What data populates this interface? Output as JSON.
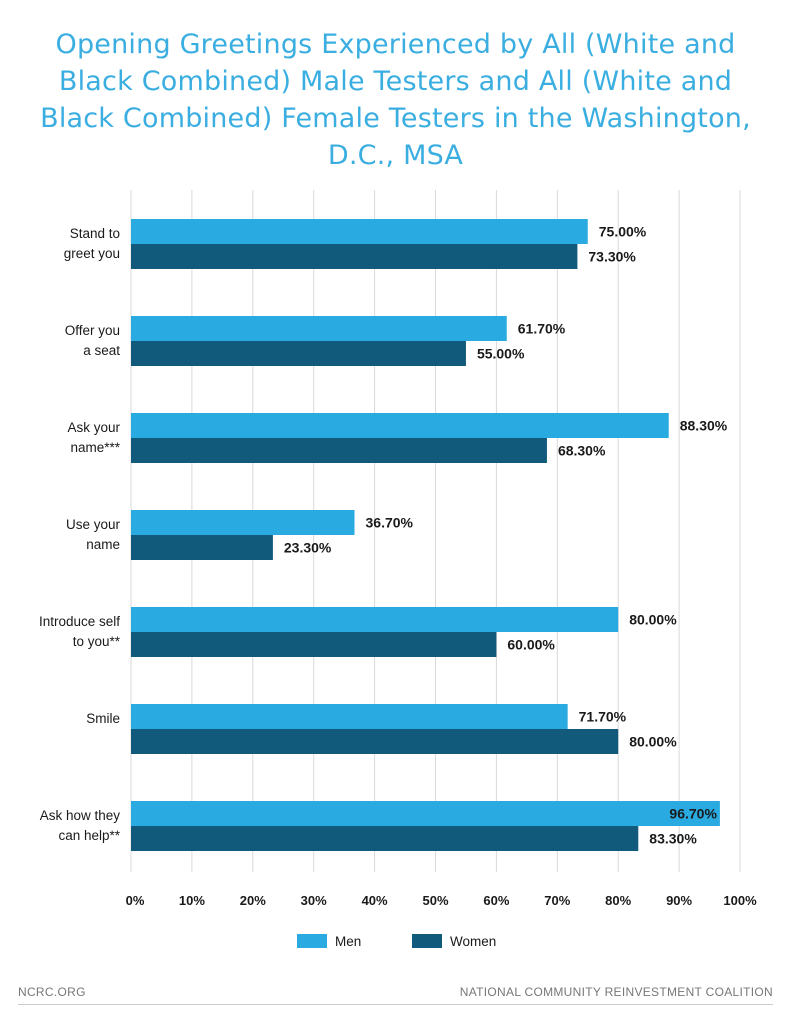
{
  "title": "Opening Greetings Experienced by All (White and Black Combined) Male Testers and All (White and Black Combined) Female Testers in the Washington, D.C., MSA",
  "colors": {
    "men": "#29abe2",
    "women": "#125a7c",
    "grid": "#d9d9d9",
    "title": "#3aaee0"
  },
  "chart_data": {
    "type": "bar",
    "orientation": "horizontal",
    "title": "Opening Greetings Experienced by All (White and Black Combined) Male Testers and All (White and Black Combined) Female Testers in the Washington, D.C., MSA",
    "categories": [
      "Stand to\ngreet you",
      "Offer you\na seat",
      "Ask your\nname***",
      "Use your\nname",
      "Introduce self\nto you**",
      "Smile",
      "Ask how they\ncan help**"
    ],
    "series": [
      {
        "name": "Men",
        "values": [
          75.0,
          61.7,
          88.3,
          36.7,
          80.0,
          71.7,
          96.7
        ],
        "labels": [
          "75.00%",
          "61.70%",
          "88.30%",
          "36.70%",
          "80.00%",
          "71.70%",
          "96.70%"
        ]
      },
      {
        "name": "Women",
        "values": [
          73.3,
          55.0,
          68.3,
          23.3,
          60.0,
          80.0,
          83.3
        ],
        "labels": [
          "73.30%",
          "55.00%",
          "68.30%",
          "23.30%",
          "60.00%",
          "80.00%",
          "83.30%"
        ]
      }
    ],
    "xlim": [
      0,
      100
    ],
    "xticks": [
      "0%",
      "10%",
      "20%",
      "30%",
      "40%",
      "50%",
      "60%",
      "70%",
      "80%",
      "90%",
      "100%"
    ],
    "grid": true,
    "legend": "bottom"
  },
  "footer": {
    "left": "NCRC.ORG",
    "right": "NATIONAL COMMUNITY REINVESTMENT COALITION"
  }
}
